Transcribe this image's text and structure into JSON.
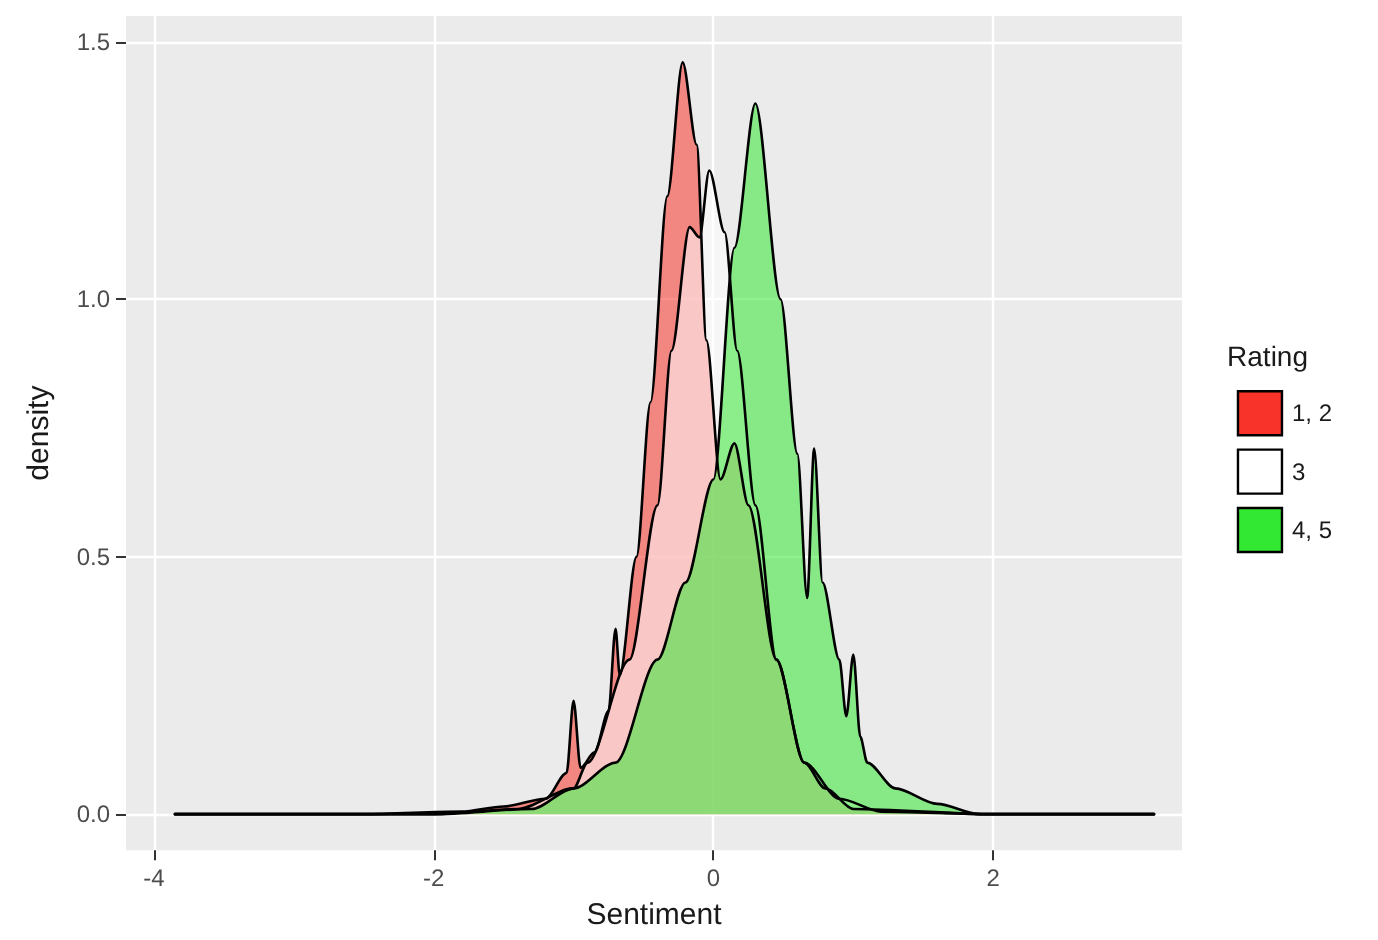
{
  "chart_data": {
    "type": "area",
    "xlabel": "Sentiment",
    "ylabel": "density",
    "legend_title": "Rating",
    "legend": "right",
    "grid": true,
    "marker": "none",
    "line_style": "solid",
    "xlim": [
      -4.2,
      3.35
    ],
    "xticks": [
      -4,
      -2,
      0,
      2
    ],
    "ylim": [
      -0.07,
      1.55
    ],
    "yticks": [
      {
        "value": 0,
        "label": "0.0"
      },
      {
        "value": 0.5,
        "label": "0.5"
      },
      {
        "value": 1,
        "label": "1.0"
      },
      {
        "value": 1.5,
        "label": "1.5"
      }
    ],
    "series": [
      {
        "name": "1, 2",
        "color": "#f8332a",
        "x": [
          -3.85,
          -2.5,
          -1.8,
          -1.5,
          -1.2,
          -1.05,
          -1.0,
          -0.95,
          -0.85,
          -0.75,
          -0.7,
          -0.67,
          -0.55,
          -0.45,
          -0.33,
          -0.22,
          -0.12,
          -0.05,
          0.05,
          0.15,
          0.25,
          0.45,
          0.65,
          0.8,
          1.0,
          2.0,
          3.15
        ],
        "values": [
          0,
          0,
          0.005,
          0.015,
          0.03,
          0.08,
          0.22,
          0.09,
          0.12,
          0.2,
          0.36,
          0.27,
          0.5,
          0.8,
          1.2,
          1.46,
          1.3,
          0.92,
          0.65,
          0.72,
          0.6,
          0.3,
          0.1,
          0.05,
          0.01,
          0,
          0
        ]
      },
      {
        "name": "3",
        "color": "#ffffff",
        "x": [
          -3.85,
          -2.0,
          -1.4,
          -1.0,
          -0.9,
          -0.6,
          -0.4,
          -0.3,
          -0.17,
          -0.1,
          -0.03,
          0.08,
          0.17,
          0.3,
          0.45,
          0.65,
          0.9,
          1.2,
          2.0,
          3.15
        ],
        "values": [
          0,
          0,
          0.01,
          0.05,
          0.1,
          0.3,
          0.6,
          0.9,
          1.14,
          1.12,
          1.25,
          1.13,
          0.9,
          0.6,
          0.3,
          0.1,
          0.03,
          0.005,
          0,
          0
        ]
      },
      {
        "name": "4, 5",
        "color": "#33e833",
        "x": [
          -3.85,
          -2.0,
          -1.3,
          -1.0,
          -0.7,
          -0.4,
          -0.2,
          0.0,
          0.15,
          0.3,
          0.48,
          0.6,
          0.67,
          0.72,
          0.78,
          0.9,
          0.95,
          1.0,
          1.05,
          1.1,
          1.3,
          1.6,
          1.9,
          3.15
        ],
        "values": [
          0,
          0,
          0.01,
          0.05,
          0.1,
          0.3,
          0.45,
          0.65,
          1.1,
          1.38,
          1.0,
          0.7,
          0.42,
          0.71,
          0.45,
          0.3,
          0.19,
          0.31,
          0.15,
          0.1,
          0.05,
          0.02,
          0,
          0
        ]
      }
    ]
  }
}
